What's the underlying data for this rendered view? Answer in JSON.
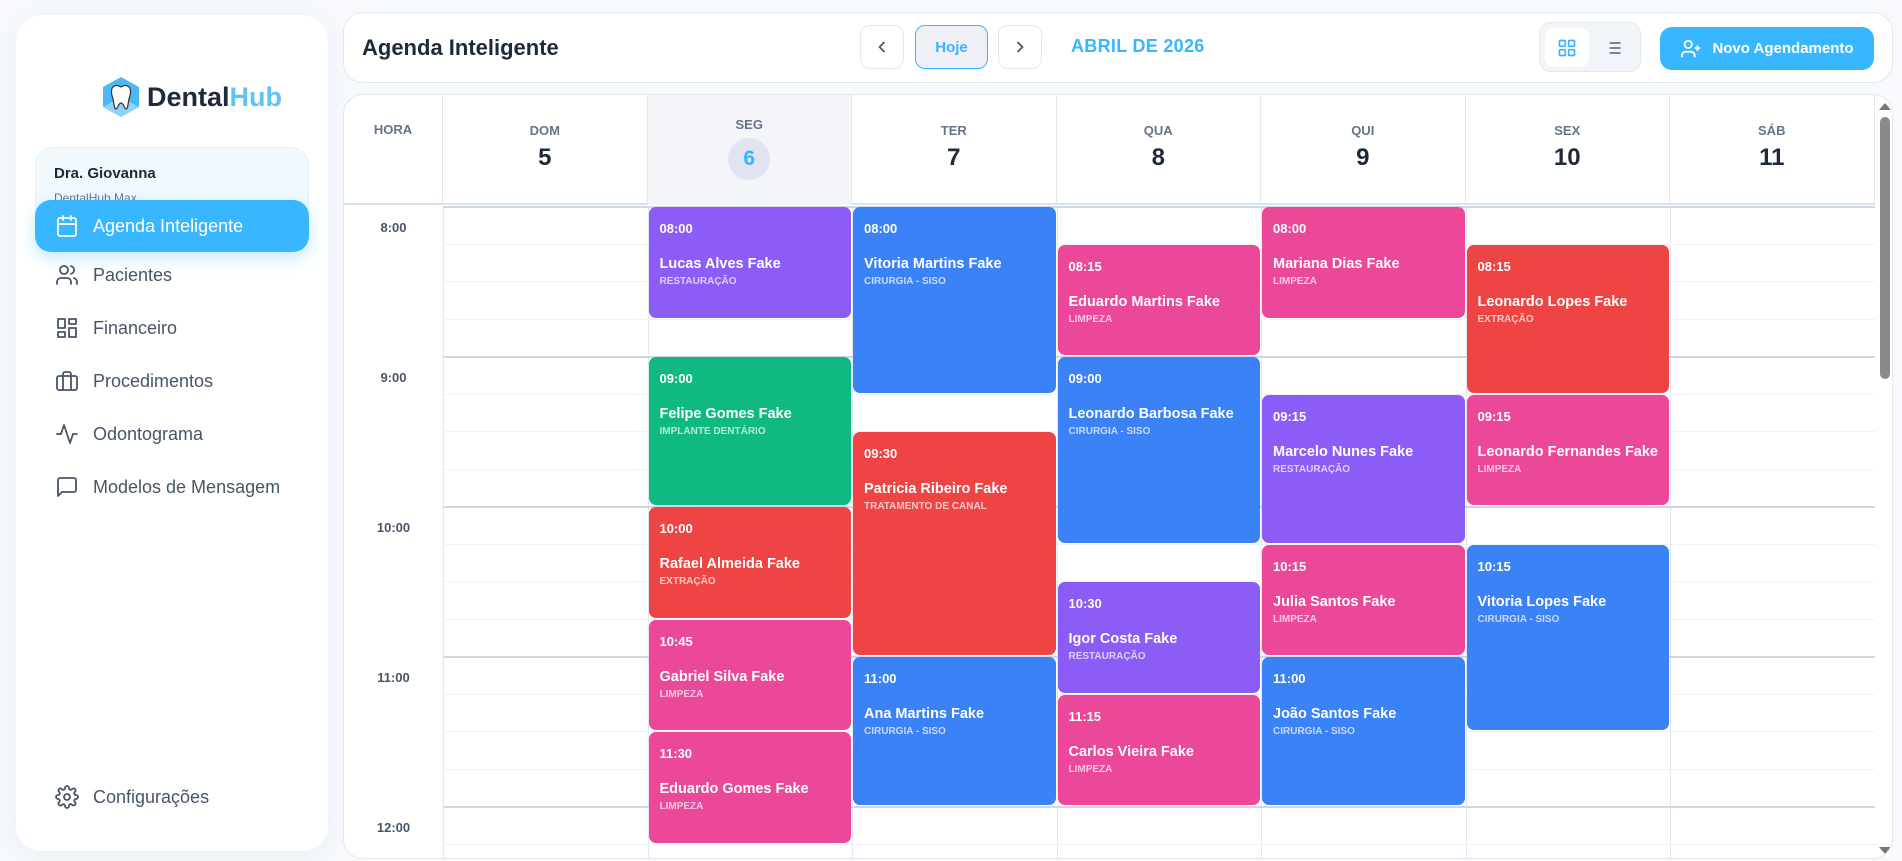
{
  "brand": {
    "name_a": "Dental",
    "name_b": "Hub"
  },
  "user": {
    "name": "Dra. Giovanna",
    "plan": "DentalHub Max"
  },
  "nav": [
    {
      "label": "Agenda Inteligente",
      "icon": "calendar-icon",
      "active": true
    },
    {
      "label": "Pacientes",
      "icon": "users-icon"
    },
    {
      "label": "Financeiro",
      "icon": "dashboard-icon"
    },
    {
      "label": "Procedimentos",
      "icon": "briefcase-icon"
    },
    {
      "label": "Odontograma",
      "icon": "activity-icon"
    },
    {
      "label": "Modelos de Mensagem",
      "icon": "message-icon"
    }
  ],
  "settings": {
    "label": "Configurações",
    "icon": "gear-icon"
  },
  "header": {
    "title": "Agenda Inteligente",
    "today": "Hoje",
    "month": "ABRIL DE 2026",
    "new_button": "Novo Agendamento"
  },
  "colors": {
    "accent": "#38b6ff",
    "purple": "#8b5cf6",
    "blue": "#3b82f6",
    "green": "#10b981",
    "red": "#ef4444",
    "pink": "#ec4899"
  },
  "calendar": {
    "hour_header": "HORA",
    "days": [
      {
        "name": "DOM",
        "num": "5"
      },
      {
        "name": "SEG",
        "num": "6",
        "today": true
      },
      {
        "name": "TER",
        "num": "7"
      },
      {
        "name": "QUA",
        "num": "8"
      },
      {
        "name": "QUI",
        "num": "9"
      },
      {
        "name": "SEX",
        "num": "10"
      },
      {
        "name": "SÁB",
        "num": "11"
      }
    ],
    "hours": [
      "8:00",
      "9:00",
      "10:00",
      "11:00",
      "12:00"
    ],
    "events": [
      {
        "day": 1,
        "time": "08:00",
        "duration_min": 45,
        "name": "Lucas Alves Fake",
        "procedure": "RESTAURAÇÃO",
        "color": "#8b5cf6"
      },
      {
        "day": 1,
        "time": "09:00",
        "duration_min": 60,
        "name": "Felipe Gomes Fake",
        "procedure": "IMPLANTE DENTÁRIO",
        "color": "#10b981"
      },
      {
        "day": 1,
        "time": "10:00",
        "duration_min": 45,
        "name": "Rafael Almeida Fake",
        "procedure": "EXTRAÇÃO",
        "color": "#ef4444"
      },
      {
        "day": 1,
        "time": "10:45",
        "duration_min": 45,
        "name": "Gabriel Silva Fake",
        "procedure": "LIMPEZA",
        "color": "#ec4899"
      },
      {
        "day": 1,
        "time": "11:30",
        "duration_min": 45,
        "name": "Eduardo Gomes Fake",
        "procedure": "LIMPEZA",
        "color": "#ec4899"
      },
      {
        "day": 2,
        "time": "08:00",
        "duration_min": 75,
        "name": "Vitoria Martins Fake",
        "procedure": "CIRURGIA - SISO",
        "color": "#3b82f6"
      },
      {
        "day": 2,
        "time": "09:30",
        "duration_min": 90,
        "name": "Patricia Ribeiro Fake",
        "procedure": "TRATAMENTO DE CANAL",
        "color": "#ef4444"
      },
      {
        "day": 2,
        "time": "11:00",
        "duration_min": 60,
        "name": "Ana Martins Fake",
        "procedure": "CIRURGIA - SISO",
        "color": "#3b82f6"
      },
      {
        "day": 3,
        "time": "08:15",
        "duration_min": 45,
        "name": "Eduardo Martins Fake",
        "procedure": "LIMPEZA",
        "color": "#ec4899"
      },
      {
        "day": 3,
        "time": "09:00",
        "duration_min": 75,
        "name": "Leonardo Barbosa Fake",
        "procedure": "CIRURGIA - SISO",
        "color": "#3b82f6"
      },
      {
        "day": 3,
        "time": "10:30",
        "duration_min": 45,
        "name": "Igor Costa Fake",
        "procedure": "RESTAURAÇÃO",
        "color": "#8b5cf6"
      },
      {
        "day": 3,
        "time": "11:15",
        "duration_min": 45,
        "name": "Carlos Vieira Fake",
        "procedure": "LIMPEZA",
        "color": "#ec4899"
      },
      {
        "day": 4,
        "time": "08:00",
        "duration_min": 45,
        "name": "Mariana Dias Fake",
        "procedure": "LIMPEZA",
        "color": "#ec4899"
      },
      {
        "day": 4,
        "time": "09:15",
        "duration_min": 60,
        "name": "Marcelo Nunes Fake",
        "procedure": "RESTAURAÇÃO",
        "color": "#8b5cf6"
      },
      {
        "day": 4,
        "time": "10:15",
        "duration_min": 45,
        "name": "Julia Santos Fake",
        "procedure": "LIMPEZA",
        "color": "#ec4899"
      },
      {
        "day": 4,
        "time": "11:00",
        "duration_min": 60,
        "name": "João Santos Fake",
        "procedure": "CIRURGIA - SISO",
        "color": "#3b82f6"
      },
      {
        "day": 5,
        "time": "08:15",
        "duration_min": 60,
        "name": "Leonardo Lopes Fake",
        "procedure": "EXTRAÇÃO",
        "color": "#ef4444"
      },
      {
        "day": 5,
        "time": "09:15",
        "duration_min": 45,
        "name": "Leonardo Fernandes Fake",
        "procedure": "LIMPEZA",
        "color": "#ec4899"
      },
      {
        "day": 5,
        "time": "10:15",
        "duration_min": 75,
        "name": "Vitoria Lopes Fake",
        "procedure": "CIRURGIA - SISO",
        "color": "#3b82f6"
      }
    ]
  }
}
